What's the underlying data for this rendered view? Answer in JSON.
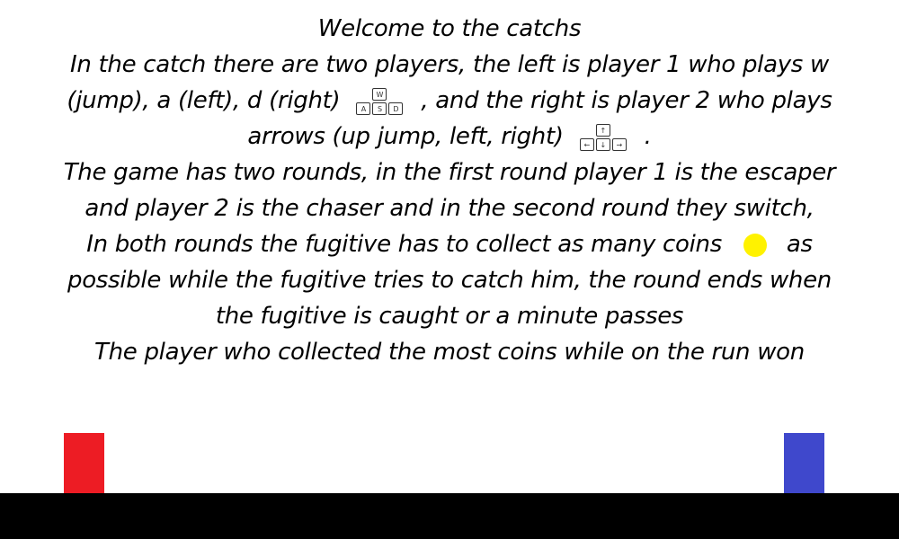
{
  "instructions": {
    "line1": "Welcome to the catchs",
    "line2": "In the catch there are two players, the left is player 1 who plays w",
    "line3a": "(jump), a (left), d (right)",
    "line3b": ", and the right is player 2 who plays",
    "line4a": "arrows (up jump, left, right)",
    "line4b": ".",
    "line5": "The game has two rounds, in the first round player 1 is the escaper",
    "line6": "and player 2 is the chaser and in the second round they switch,",
    "line7a": "In both rounds the fugitive has to collect as many coins",
    "line7b": "as",
    "line8": "possible while the fugitive tries to catch him, the round ends when",
    "line9": "the fugitive is caught or a minute passes",
    "line10": "The player who collected the most coins while on the run won"
  },
  "keys_player1": {
    "up": "W",
    "left": "A",
    "down": "S",
    "right": "D"
  },
  "keys_player2": {
    "up": "↑",
    "left": "←",
    "down": "↓",
    "right": "→"
  },
  "colors": {
    "player1": "#ed1c24",
    "player2": "#3f48cc",
    "coin": "#fff200",
    "ground": "#000000"
  }
}
